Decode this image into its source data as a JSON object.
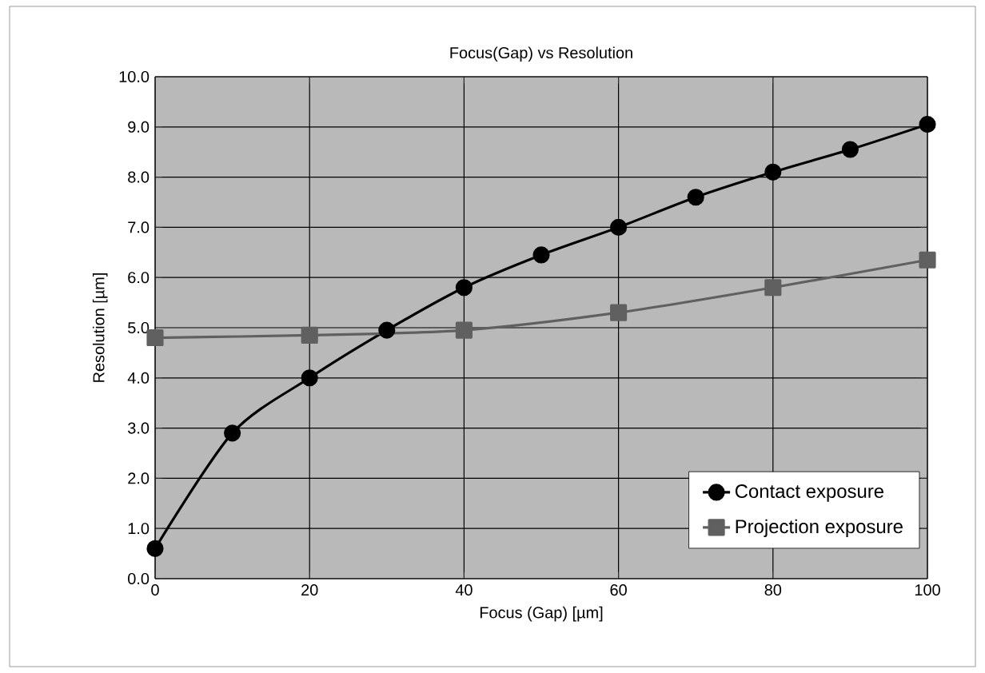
{
  "chart_data": {
    "type": "line",
    "title": "Focus(Gap) vs Resolution",
    "xlabel": "Focus (Gap) [µm]",
    "ylabel": "Resolution [µm]",
    "xlim": [
      0,
      100
    ],
    "xticks": [
      0,
      20,
      40,
      60,
      80,
      100
    ],
    "ylim": [
      0,
      10
    ],
    "yticks": [
      {
        "value": 0,
        "label": "0.0"
      },
      {
        "value": 1,
        "label": "1.0"
      },
      {
        "value": 2,
        "label": "2.0"
      },
      {
        "value": 3,
        "label": "3.0"
      },
      {
        "value": 4,
        "label": "4.0"
      },
      {
        "value": 5,
        "label": "5.0"
      },
      {
        "value": 6,
        "label": "6.0"
      },
      {
        "value": 7,
        "label": "7.0"
      },
      {
        "value": 8,
        "label": "8.0"
      },
      {
        "value": 9,
        "label": "9.0"
      },
      {
        "value": 10,
        "label": "10.0"
      }
    ],
    "grid": true,
    "legend": "bottom right",
    "line_style": "solid",
    "series": [
      {
        "name": "Contact exposure",
        "color": "#000000",
        "marker": "circle",
        "x": [
          0,
          10,
          20,
          30,
          40,
          50,
          60,
          70,
          80,
          90,
          100
        ],
        "values": [
          0.6,
          2.9,
          4.0,
          4.95,
          5.8,
          6.45,
          7.0,
          7.6,
          8.1,
          8.55,
          9.05
        ]
      },
      {
        "name": "Projection exposure",
        "color": "#606060",
        "marker": "square",
        "x": [
          0,
          20,
          40,
          60,
          80,
          100
        ],
        "values": [
          4.8,
          4.85,
          4.95,
          5.3,
          5.8,
          6.35
        ]
      }
    ]
  }
}
